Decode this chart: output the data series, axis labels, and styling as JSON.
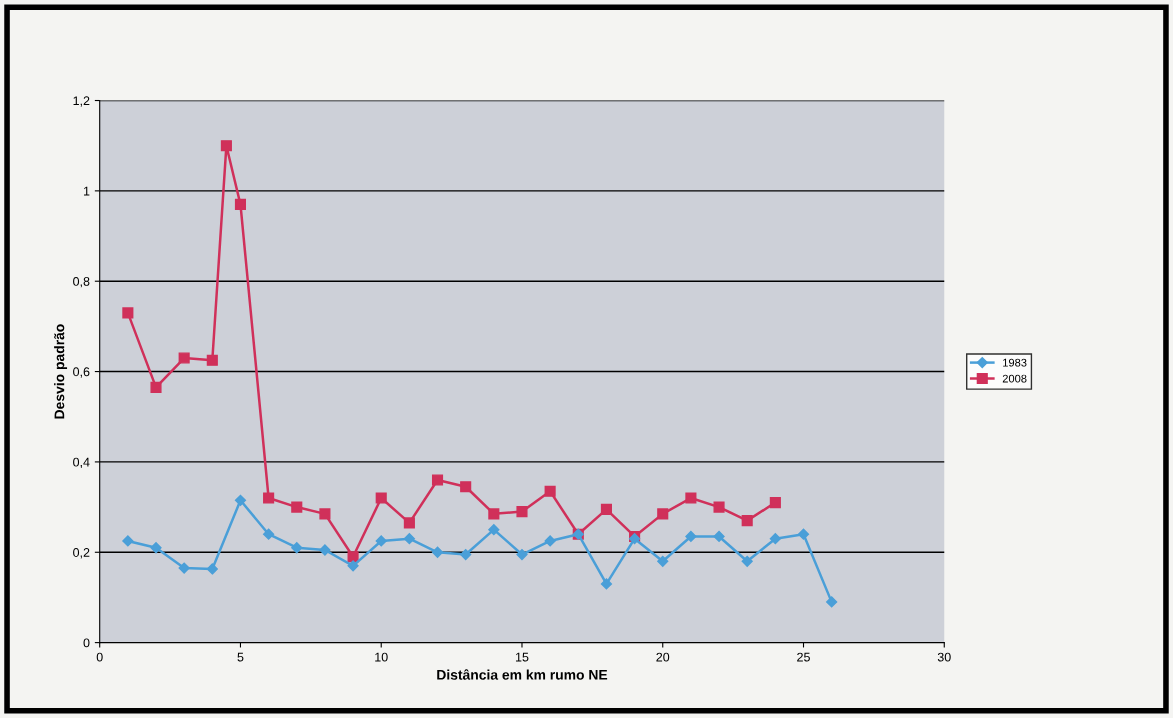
{
  "chart_data": {
    "type": "line",
    "xlabel": "Distância em km rumo NE",
    "ylabel": "Desvio padrão",
    "series": [
      {
        "name": "1983",
        "color": "#4a9fd8",
        "marker": "diamond",
        "x": [
          1,
          2,
          3,
          4,
          5,
          6,
          7,
          8,
          9,
          10,
          11,
          12,
          13,
          14,
          15,
          16,
          17,
          18,
          19,
          20,
          21,
          22,
          23,
          24,
          25,
          26
        ],
        "values": [
          0.225,
          0.21,
          0.165,
          0.163,
          0.315,
          0.24,
          0.21,
          0.205,
          0.17,
          0.225,
          0.23,
          0.2,
          0.195,
          0.25,
          0.195,
          0.225,
          0.24,
          0.13,
          0.23,
          0.18,
          0.235,
          0.235,
          0.18,
          0.23,
          0.24,
          0.09
        ]
      },
      {
        "name": "2008",
        "color": "#d0305a",
        "marker": "square",
        "x": [
          1,
          2,
          3,
          4,
          4.5,
          5,
          6,
          7,
          8,
          9,
          10,
          11,
          12,
          13,
          14,
          15,
          16,
          17,
          18,
          19,
          20,
          21,
          22,
          23,
          24
        ],
        "values": [
          0.73,
          0.565,
          0.63,
          0.625,
          1.1,
          0.97,
          0.32,
          0.3,
          0.285,
          0.19,
          0.32,
          0.265,
          0.36,
          0.345,
          0.285,
          0.29,
          0.335,
          0.24,
          0.295,
          0.235,
          0.285,
          0.32,
          0.3,
          0.27,
          0.31
        ]
      }
    ],
    "xlim": [
      0,
      30
    ],
    "xticks": [
      0,
      5,
      10,
      15,
      20,
      25,
      30
    ],
    "ylim": [
      0,
      1.2
    ],
    "yticks": [
      {
        "value": 0,
        "label": "0"
      },
      {
        "value": 0.2,
        "label": "0,2"
      },
      {
        "value": 0.4,
        "label": "0,4"
      },
      {
        "value": 0.6,
        "label": "0,6"
      },
      {
        "value": 0.8,
        "label": "0,8"
      },
      {
        "value": 1,
        "label": "1"
      },
      {
        "value": 1.2,
        "label": "1,2"
      }
    ],
    "grid": "y",
    "legend": "right",
    "line_style": "solid"
  }
}
